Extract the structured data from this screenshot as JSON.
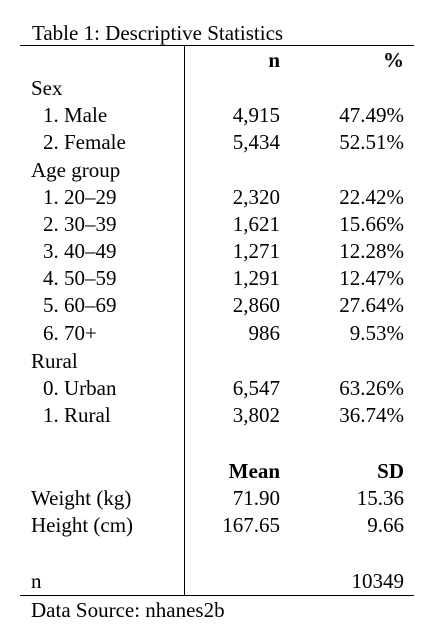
{
  "title": "Table 1: Descriptive Statistics",
  "header": {
    "col1": "n",
    "col2": "%"
  },
  "sex": {
    "label": "Sex",
    "rows": [
      {
        "label": "1. Male",
        "n": "4,915",
        "pct": "47.49%"
      },
      {
        "label": "2. Female",
        "n": "5,434",
        "pct": "52.51%"
      }
    ]
  },
  "age": {
    "label": "Age group",
    "rows": [
      {
        "label": "1. 20–29",
        "n": "2,320",
        "pct": "22.42%"
      },
      {
        "label": "2. 30–39",
        "n": "1,621",
        "pct": "15.66%"
      },
      {
        "label": "3. 40–49",
        "n": "1,271",
        "pct": "12.28%"
      },
      {
        "label": "4. 50–59",
        "n": "1,291",
        "pct": "12.47%"
      },
      {
        "label": "5. 60–69",
        "n": "2,860",
        "pct": "27.64%"
      },
      {
        "label": "6. 70+",
        "n": "986",
        "pct": "9.53%"
      }
    ]
  },
  "rural": {
    "label": "Rural",
    "rows": [
      {
        "label": "0. Urban",
        "n": "6,547",
        "pct": "63.26%"
      },
      {
        "label": "1. Rural",
        "n": "3,802",
        "pct": "36.74%"
      }
    ]
  },
  "continuous_header": {
    "col1": "Mean",
    "col2": "SD"
  },
  "continuous": [
    {
      "label": "Weight (kg)",
      "mean": "71.90",
      "sd": "15.36"
    },
    {
      "label": "Height (cm)",
      "mean": "167.65",
      "sd": "9.66"
    }
  ],
  "total": {
    "label": "n",
    "value": "10349"
  },
  "source": "Data Source: nhanes2b"
}
